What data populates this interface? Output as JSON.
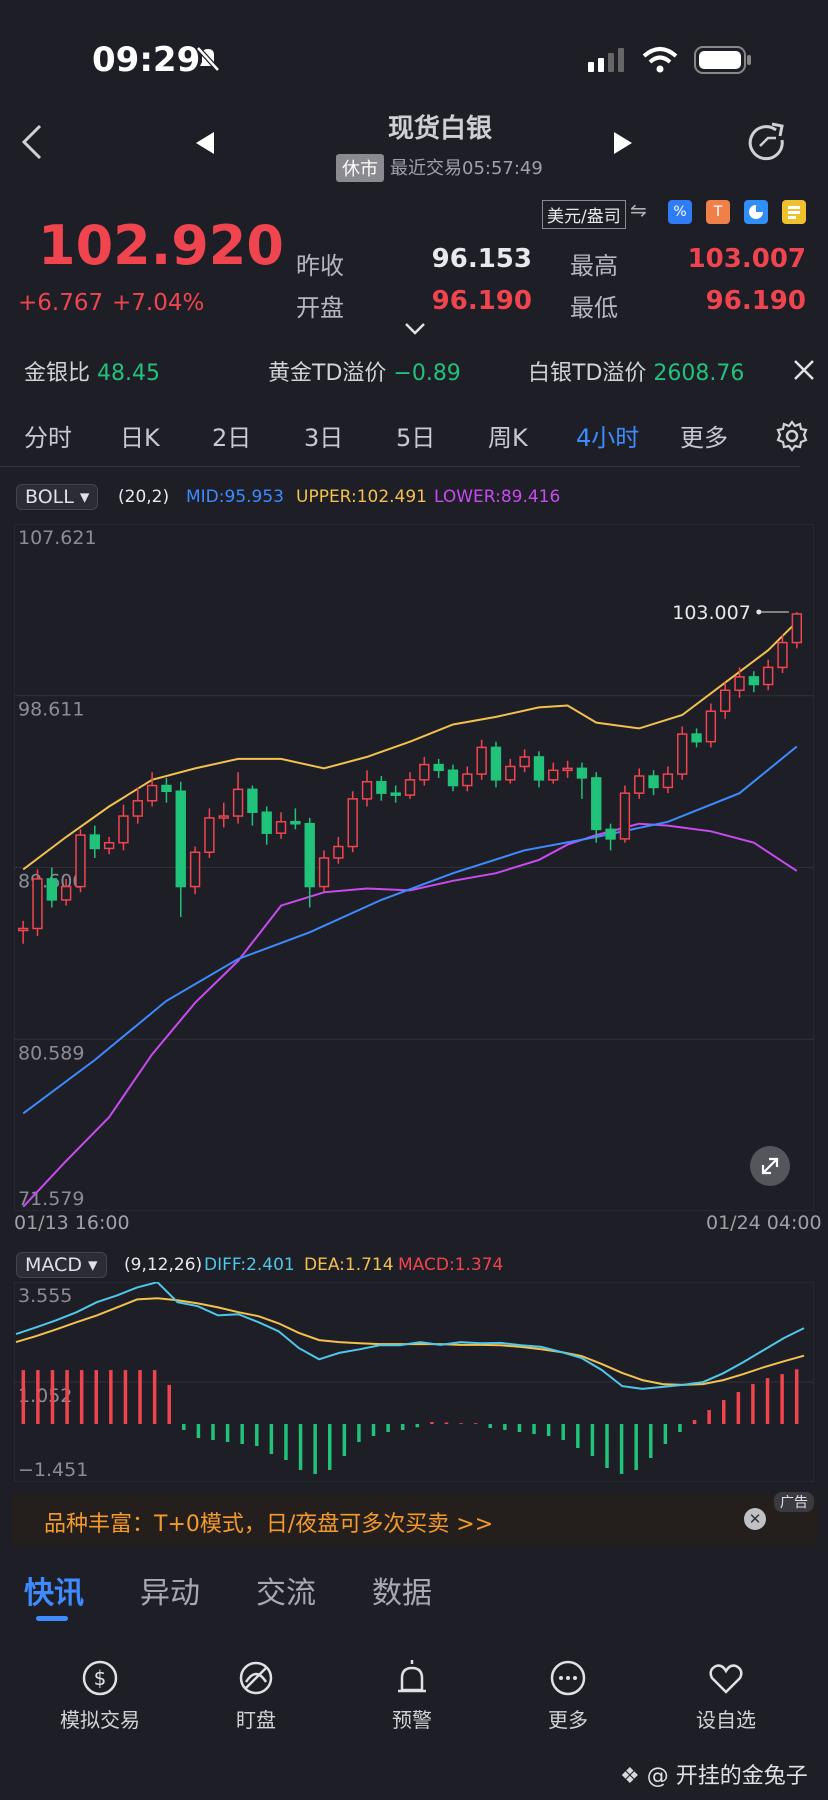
{
  "status_bar": {
    "time": "09:29"
  },
  "header": {
    "title": "现货白银",
    "status_badge": "休市",
    "last_trade": "最近交易05:57:49"
  },
  "currency_toggle": "美元/盎司",
  "quote": {
    "price": "102.920",
    "change": "+6.767",
    "change_pct": "+7.04%",
    "prev_close_label": "昨收",
    "prev_close": "96.153",
    "open_label": "开盘",
    "open": "96.190",
    "high_label": "最高",
    "high": "103.007",
    "low_label": "最低",
    "low": "96.190"
  },
  "ratios": [
    {
      "label": "金银比",
      "value": "48.45"
    },
    {
      "label": "黄金TD溢价",
      "value": "−0.89"
    },
    {
      "label": "白银TD溢价",
      "value": "2608.76"
    }
  ],
  "period_tabs": [
    "分时",
    "日K",
    "2日",
    "3日",
    "5日",
    "周K",
    "4小时",
    "更多"
  ],
  "active_tab": "4小时",
  "boll": {
    "name": "BOLL",
    "params": "(20,2)",
    "mid": "MID:95.953",
    "upper": "UPPER:102.491",
    "lower": "LOWER:89.416"
  },
  "macd": {
    "name": "MACD",
    "params": "(9,12,26)",
    "diff": "DIFF:2.401",
    "dea": "DEA:1.714",
    "macd": "MACD:1.374"
  },
  "chart_data": [
    {
      "type": "candlestick",
      "y_ticks": [
        "107.621",
        "98.611",
        "89.600",
        "80.589",
        "71.579"
      ],
      "ylim": [
        71.579,
        107.621
      ],
      "x_labels": [
        "01/13 16:00",
        "01/24 04:00"
      ],
      "high_marker": "103.007",
      "candles": [
        [
          86.3,
          86.4,
          85.6,
          86.8
        ],
        [
          86.4,
          89.0,
          86.0,
          89.5
        ],
        [
          89.0,
          87.9,
          87.5,
          89.6
        ],
        [
          87.9,
          88.6,
          87.6,
          89.0
        ],
        [
          88.6,
          91.3,
          88.3,
          91.6
        ],
        [
          91.3,
          90.6,
          90.1,
          91.8
        ],
        [
          90.6,
          90.9,
          90.3,
          91.2
        ],
        [
          90.9,
          92.3,
          90.5,
          92.9
        ],
        [
          92.3,
          93.1,
          91.9,
          93.8
        ],
        [
          93.1,
          93.9,
          92.8,
          94.6
        ],
        [
          93.9,
          93.6,
          93.0,
          94.3
        ],
        [
          93.6,
          88.6,
          87.0,
          94.1
        ],
        [
          88.6,
          90.4,
          88.2,
          90.7
        ],
        [
          90.4,
          92.2,
          90.1,
          92.7
        ],
        [
          92.2,
          92.3,
          91.7,
          93.0
        ],
        [
          92.3,
          93.7,
          91.9,
          94.6
        ],
        [
          93.7,
          92.5,
          91.8,
          93.9
        ],
        [
          92.5,
          91.4,
          90.8,
          92.8
        ],
        [
          91.4,
          92.0,
          91.1,
          92.5
        ],
        [
          92.0,
          91.9,
          91.6,
          92.7
        ],
        [
          91.9,
          88.6,
          87.5,
          92.2
        ],
        [
          88.6,
          90.1,
          88.3,
          90.5
        ],
        [
          90.1,
          90.7,
          89.8,
          91.2
        ],
        [
          90.7,
          93.2,
          90.4,
          93.6
        ],
        [
          93.2,
          94.1,
          92.8,
          94.7
        ],
        [
          94.1,
          93.5,
          93.1,
          94.4
        ],
        [
          93.5,
          93.4,
          93.0,
          93.9
        ],
        [
          93.4,
          94.2,
          93.2,
          94.6
        ],
        [
          94.2,
          95.0,
          93.9,
          95.4
        ],
        [
          95.0,
          94.7,
          94.3,
          95.3
        ],
        [
          94.7,
          93.9,
          93.6,
          95.0
        ],
        [
          93.9,
          94.5,
          93.6,
          94.9
        ],
        [
          94.5,
          95.9,
          94.2,
          96.3
        ],
        [
          95.9,
          94.2,
          93.8,
          96.2
        ],
        [
          94.2,
          94.9,
          94.0,
          95.3
        ],
        [
          94.9,
          95.4,
          94.6,
          95.8
        ],
        [
          95.4,
          94.2,
          93.8,
          95.7
        ],
        [
          94.2,
          94.7,
          94.0,
          95.1
        ],
        [
          94.7,
          94.8,
          94.3,
          95.2
        ],
        [
          94.8,
          94.3,
          93.2,
          95.1
        ],
        [
          94.3,
          91.6,
          90.9,
          94.6
        ],
        [
          91.6,
          91.1,
          90.5,
          91.9
        ],
        [
          91.1,
          93.5,
          90.9,
          93.9
        ],
        [
          93.5,
          94.4,
          93.2,
          94.8
        ],
        [
          94.4,
          93.8,
          93.4,
          94.7
        ],
        [
          93.8,
          94.5,
          93.5,
          94.9
        ],
        [
          94.5,
          96.6,
          94.2,
          97.0
        ],
        [
          96.6,
          96.2,
          95.9,
          96.9
        ],
        [
          96.2,
          97.8,
          95.9,
          98.2
        ],
        [
          97.8,
          98.9,
          97.4,
          99.3
        ],
        [
          98.9,
          99.6,
          98.5,
          100.1
        ],
        [
          99.6,
          99.2,
          98.8,
          99.9
        ],
        [
          99.2,
          100.1,
          98.9,
          100.5
        ],
        [
          100.1,
          101.4,
          99.8,
          101.8
        ],
        [
          101.4,
          102.9,
          101.1,
          103.0
        ]
      ],
      "boll_mid": [
        [
          0,
          76.7
        ],
        [
          5,
          79.5
        ],
        [
          10,
          82.6
        ],
        [
          15,
          84.8
        ],
        [
          20,
          86.2
        ],
        [
          25,
          87.9
        ],
        [
          30,
          89.3
        ],
        [
          35,
          90.5
        ],
        [
          40,
          91.2
        ],
        [
          45,
          92.0
        ],
        [
          50,
          93.5
        ],
        [
          54,
          95.95
        ]
      ],
      "boll_upper": [
        [
          0,
          89.5
        ],
        [
          3,
          91.2
        ],
        [
          6,
          92.8
        ],
        [
          9,
          94.2
        ],
        [
          12,
          94.8
        ],
        [
          15,
          95.3
        ],
        [
          18,
          95.3
        ],
        [
          21,
          94.8
        ],
        [
          24,
          95.4
        ],
        [
          27,
          96.2
        ],
        [
          30,
          97.1
        ],
        [
          33,
          97.5
        ],
        [
          36,
          98.0
        ],
        [
          38,
          98.1
        ],
        [
          40,
          97.2
        ],
        [
          43,
          96.9
        ],
        [
          46,
          97.6
        ],
        [
          49,
          99.3
        ],
        [
          52,
          101.0
        ],
        [
          54,
          102.49
        ]
      ],
      "boll_lower": [
        [
          0,
          71.8
        ],
        [
          3,
          74.2
        ],
        [
          6,
          76.5
        ],
        [
          9,
          79.8
        ],
        [
          12,
          82.5
        ],
        [
          15,
          84.7
        ],
        [
          18,
          87.6
        ],
        [
          21,
          88.3
        ],
        [
          24,
          88.5
        ],
        [
          27,
          88.4
        ],
        [
          30,
          88.9
        ],
        [
          33,
          89.3
        ],
        [
          36,
          90.0
        ],
        [
          38,
          90.8
        ],
        [
          40,
          91.3
        ],
        [
          43,
          91.9
        ],
        [
          45,
          91.8
        ],
        [
          48,
          91.5
        ],
        [
          51,
          90.9
        ],
        [
          54,
          89.42
        ]
      ]
    },
    {
      "type": "macd",
      "y_ticks": [
        "3.555",
        "1.052",
        "−1.451"
      ],
      "ylim": [
        -1.451,
        3.555
      ],
      "diff": [
        2.25,
        2.42,
        2.6,
        2.8,
        3.05,
        3.22,
        3.42,
        3.55,
        3.05,
        2.95,
        2.72,
        2.75,
        2.55,
        2.32,
        1.9,
        1.62,
        1.78,
        1.87,
        1.97,
        1.97,
        2.05,
        1.98,
        2.05,
        2.02,
        2.03,
        1.97,
        1.93,
        1.8,
        1.65,
        1.35,
        0.95,
        0.88,
        0.93,
        0.98,
        1.05,
        1.27,
        1.55,
        1.85,
        2.15,
        2.4
      ],
      "dea": [
        2.05,
        2.2,
        2.37,
        2.55,
        2.72,
        2.92,
        3.12,
        3.15,
        3.1,
        3.02,
        2.92,
        2.8,
        2.7,
        2.52,
        2.28,
        2.1,
        2.05,
        2.02,
        2.0,
        2.0,
        2.0,
        2.0,
        1.98,
        1.98,
        1.97,
        1.93,
        1.87,
        1.8,
        1.7,
        1.5,
        1.28,
        1.1,
        1.0,
        0.98,
        1.0,
        1.1,
        1.25,
        1.42,
        1.57,
        1.71
      ],
      "hist": [
        1.35,
        1.35,
        1.35,
        1.35,
        1.35,
        1.35,
        1.35,
        1.35,
        1.35,
        1.35,
        0.98,
        -0.15,
        -0.35,
        -0.4,
        -0.45,
        -0.5,
        -0.55,
        -0.75,
        -0.9,
        -1.15,
        -1.25,
        -1.15,
        -0.8,
        -0.45,
        -0.3,
        -0.2,
        -0.15,
        -0.08,
        0.05,
        0.04,
        0.02,
        0.02,
        -0.1,
        -0.15,
        -0.2,
        -0.25,
        -0.3,
        -0.4,
        -0.6,
        -0.8,
        -1.1,
        -1.25,
        -1.15,
        -0.85,
        -0.5,
        -0.2,
        0.1,
        0.35,
        0.6,
        0.8,
        1.0,
        1.15,
        1.25,
        1.37
      ]
    }
  ],
  "ad_banner": {
    "text": "品种丰富：T+0模式，日/夜盘可多次买卖 >>",
    "tag": "广告"
  },
  "news_tabs": [
    "快讯",
    "异动",
    "交流",
    "数据"
  ],
  "bottom_nav": [
    "模拟交易",
    "盯盘",
    "预警",
    "更多",
    "设自选"
  ],
  "watermark": "@ 开挂的金兔子",
  "colors": {
    "up": "#f0454f",
    "down": "#21c27a",
    "mid": "#3d8bff",
    "upper": "#f2c14e",
    "lower": "#c84bf0",
    "diff": "#4fc7e8"
  }
}
